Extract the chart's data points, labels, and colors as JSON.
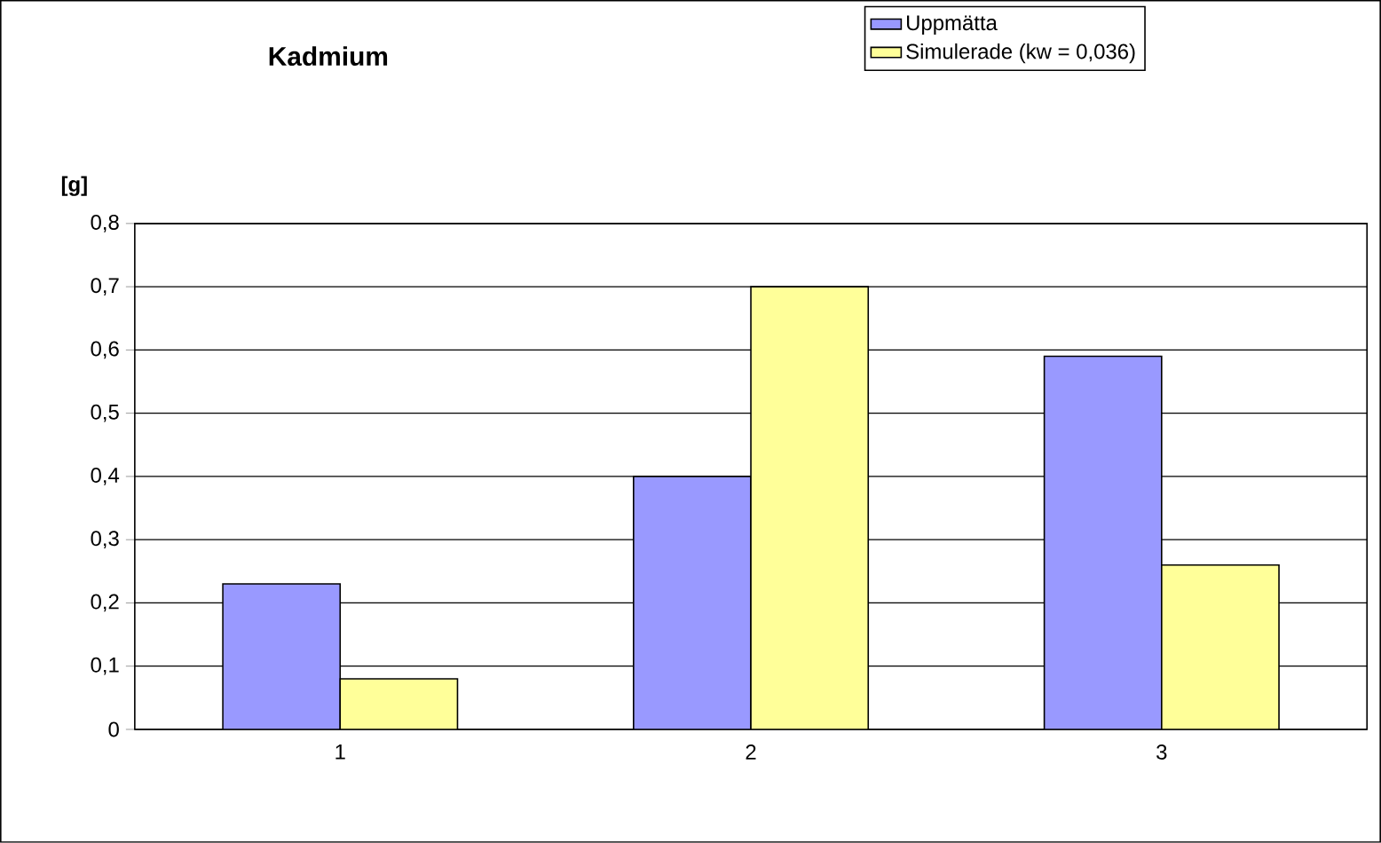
{
  "chart_data": {
    "type": "bar",
    "title": "Kadmium",
    "ylabel": "[g]",
    "categories": [
      "1",
      "2",
      "3"
    ],
    "series": [
      {
        "name": "Uppmätta",
        "color": "#9999ff",
        "values": [
          0.23,
          0.4,
          0.59
        ]
      },
      {
        "name": "Simulerade (kw = 0,036)",
        "color": "#ffff99",
        "values": [
          0.08,
          0.7,
          0.26
        ]
      }
    ],
    "ylim": [
      0,
      0.8
    ],
    "yticks": [
      0,
      {
        "value": 0.1,
        "label": "0,1"
      },
      {
        "value": 0.2,
        "label": "0,2"
      },
      {
        "value": 0.3,
        "label": "0,3"
      },
      {
        "value": 0.4,
        "label": "0,4"
      },
      {
        "value": 0.5,
        "label": "0,5"
      },
      {
        "value": 0.6,
        "label": "0,6"
      },
      {
        "value": 0.7,
        "label": "0,7"
      },
      {
        "value": 0.8,
        "label": "0,8"
      }
    ],
    "grid": "y",
    "legend": "top right"
  }
}
